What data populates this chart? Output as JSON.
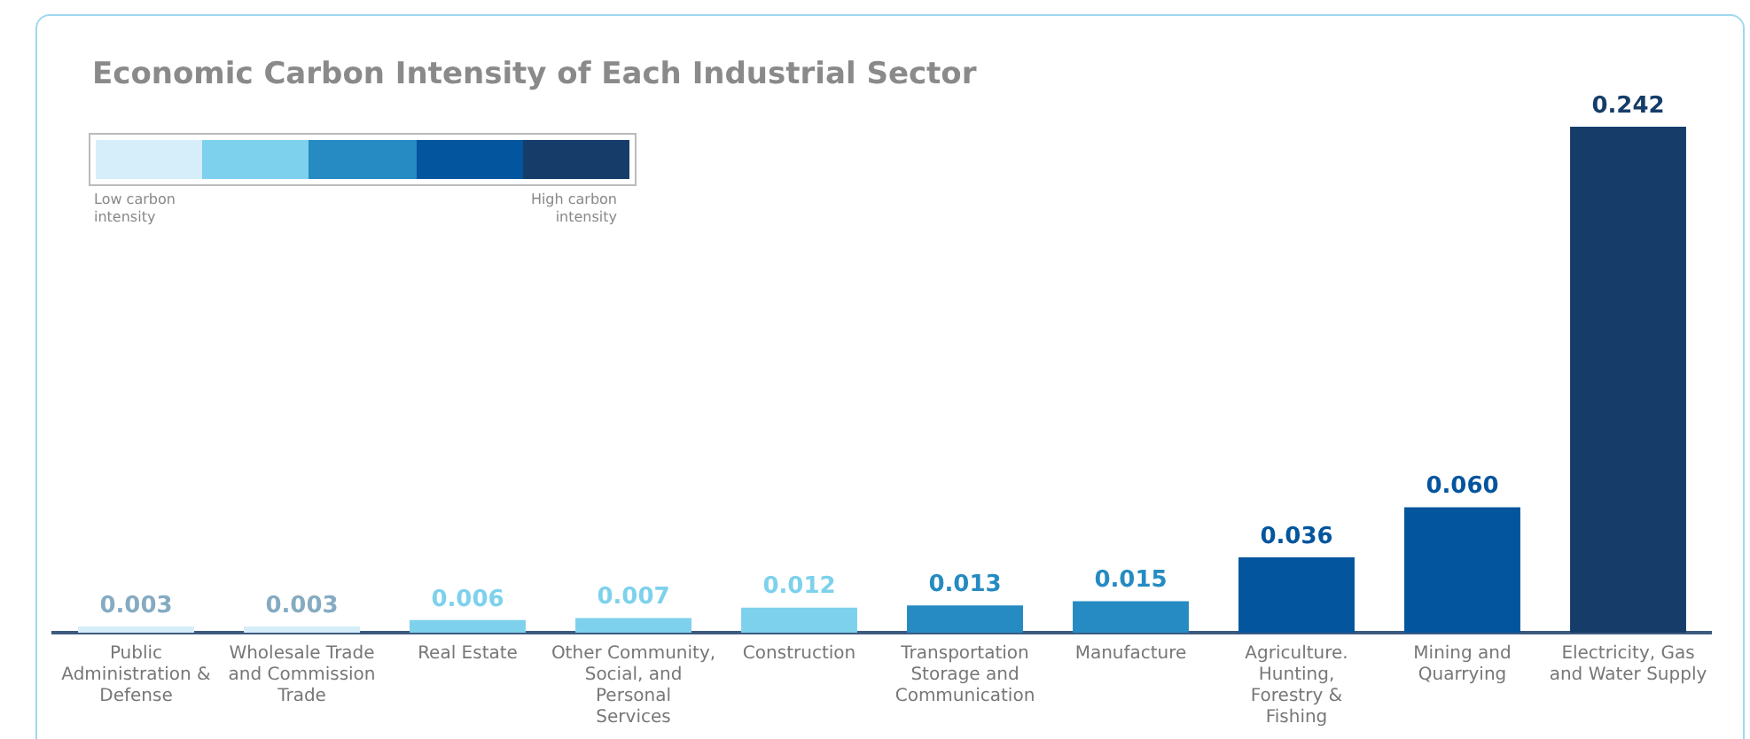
{
  "chart_data": {
    "type": "bar",
    "title": "Economic Carbon Intensity of Each Industrial Sector",
    "categories": [
      "Public Administration & Defense",
      "Wholesale Trade and Commission Trade",
      "Real Estate",
      "Other Community, Social, and Personal Services",
      "Construction",
      "Transportation Storage and Communication",
      "Manufacture",
      "Agriculture. Hunting, Forestry & Fishing",
      "Mining and Quarrying",
      "Electricity, Gas and Water Supply"
    ],
    "values": [
      0.003,
      0.003,
      0.006,
      0.007,
      0.012,
      0.013,
      0.015,
      0.036,
      0.06,
      0.242
    ],
    "colors": [
      "#d6eef9",
      "#d6eef9",
      "#7dd1ec",
      "#7dd1ec",
      "#7dd1ec",
      "#258bc2",
      "#258bc2",
      "#03559e",
      "#03559e",
      "#163d69"
    ],
    "value_labels": [
      "0.003",
      "0.003",
      "0.006",
      "0.007",
      "0.012",
      "0.013",
      "0.015",
      "0.036",
      "0.060",
      "0.242"
    ],
    "grid": false,
    "legend": false,
    "annotations": [
      "Low carbon intensity",
      "High carbon intensity"
    ]
  }
}
